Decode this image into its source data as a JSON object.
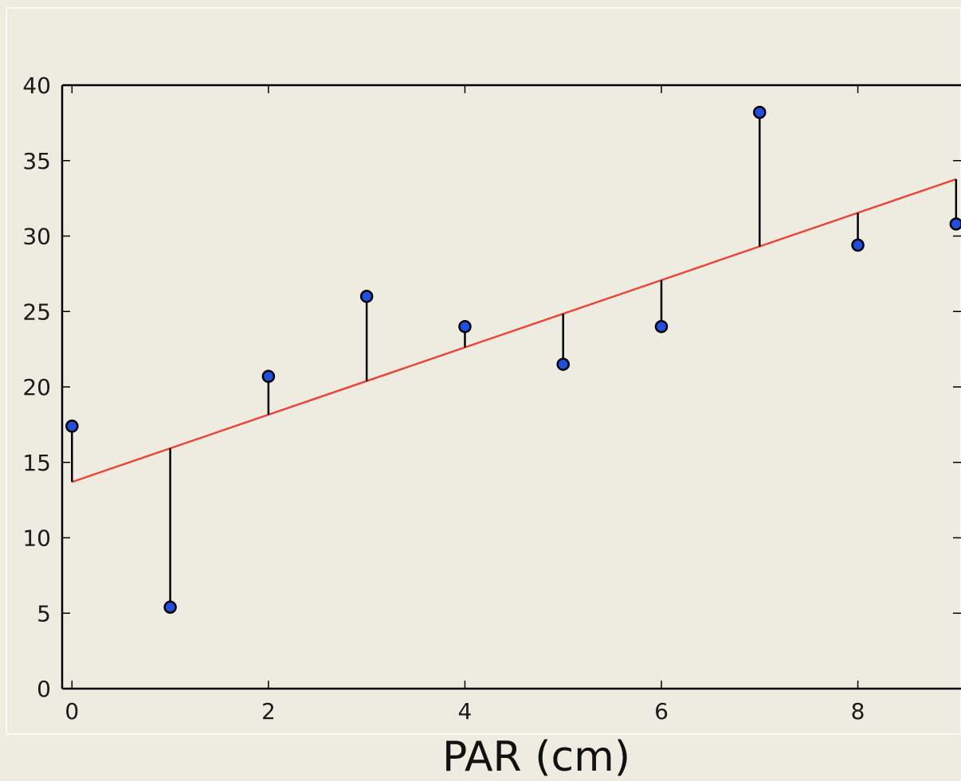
{
  "chart_data": {
    "type": "scatter",
    "title": "",
    "xlabel": "PAR (cm)",
    "ylabel": "",
    "xlim": [
      -0.1,
      9.05
    ],
    "ylim": [
      0,
      40
    ],
    "x_ticks": [
      0,
      2,
      4,
      6,
      8
    ],
    "y_ticks": [
      0,
      5,
      10,
      15,
      20,
      25,
      30,
      35,
      40
    ],
    "grid": false,
    "legend": "none",
    "series": [
      {
        "points": [
          {
            "x": 0,
            "y": 17.4
          },
          {
            "x": 1,
            "y": 5.4
          },
          {
            "x": 2,
            "y": 20.7
          },
          {
            "x": 3,
            "y": 26.0
          },
          {
            "x": 4,
            "y": 24.0
          },
          {
            "x": 5,
            "y": 21.5
          },
          {
            "x": 6,
            "y": 24.0
          },
          {
            "x": 7,
            "y": 38.2
          },
          {
            "x": 8,
            "y": 29.4
          },
          {
            "x": 9,
            "y": 30.8
          }
        ]
      }
    ],
    "fit_line": {
      "intercept": 13.7,
      "slope": 2.23
    },
    "residuals_shown": true,
    "colors": {
      "points": "#1f4fe0",
      "fit_line": "#e8483a",
      "residuals": "#000000",
      "axes": "#000000",
      "background": "#eeebe1"
    }
  }
}
